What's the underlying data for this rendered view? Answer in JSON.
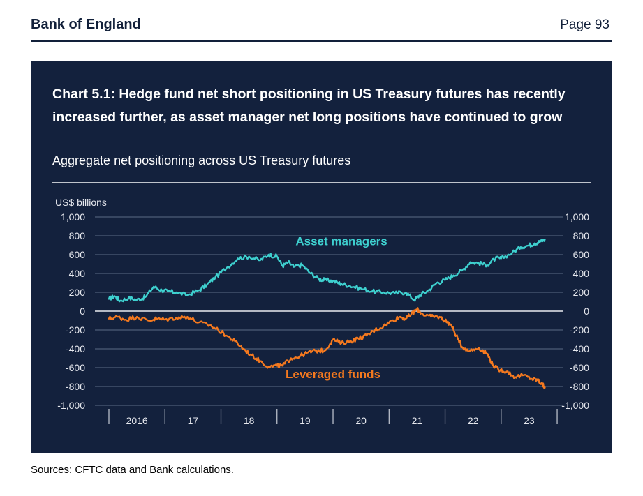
{
  "header": {
    "org": "Bank of England",
    "page": "Page 93"
  },
  "footer": {
    "sources": "Sources: CFTC data and Bank calculations."
  },
  "chart_data": {
    "type": "line",
    "title": "Chart 5.1: Hedge fund net short positioning in US Treasury futures has recently increased further, as asset manager net long positions have continued to grow",
    "subtitle": "Aggregate net positioning across US Treasury futures",
    "ylabel": "US$ billions",
    "ylim": [
      -1000,
      1000
    ],
    "yticks": [
      1000,
      800,
      600,
      400,
      200,
      0,
      -200,
      -400,
      -600,
      -800,
      -1000
    ],
    "ytick_labels": [
      "1,000",
      "800",
      "600",
      "400",
      "200",
      "0",
      "-200",
      "-400",
      "-600",
      "-800",
      "-1,000"
    ],
    "xlim": [
      2016.0,
      2023.85
    ],
    "xticks": [
      2016,
      2017,
      2018,
      2019,
      2020,
      2021,
      2022,
      2023,
      2024
    ],
    "x_labels": [
      "2016",
      "17",
      "18",
      "19",
      "20",
      "21",
      "22",
      "23"
    ],
    "x_label_positions": [
      2016.5,
      2017.5,
      2018.5,
      2019.5,
      2020.5,
      2021.5,
      2022.5,
      2023.5
    ],
    "grid": true,
    "series": [
      {
        "name": "Asset managers",
        "color": "#3ed0cf",
        "x": [
          2016.0,
          2016.1,
          2016.2,
          2016.35,
          2016.5,
          2016.65,
          2016.8,
          2016.95,
          2017.05,
          2017.2,
          2017.4,
          2017.6,
          2017.75,
          2017.9,
          2018.1,
          2018.3,
          2018.5,
          2018.7,
          2018.85,
          2019.0,
          2019.1,
          2019.2,
          2019.3,
          2019.45,
          2019.6,
          2019.75,
          2019.85,
          2020.0,
          2020.15,
          2020.3,
          2020.5,
          2020.7,
          2020.9,
          2021.1,
          2021.3,
          2021.45,
          2021.55,
          2021.7,
          2021.85,
          2022.0,
          2022.15,
          2022.3,
          2022.45,
          2022.6,
          2022.75,
          2022.9,
          2023.0,
          2023.2,
          2023.35,
          2023.5,
          2023.6,
          2023.7,
          2023.78
        ],
        "values": [
          130,
          160,
          110,
          140,
          120,
          150,
          260,
          220,
          210,
          200,
          170,
          220,
          280,
          360,
          460,
          560,
          580,
          540,
          600,
          580,
          480,
          520,
          470,
          490,
          400,
          340,
          330,
          320,
          290,
          270,
          240,
          210,
          200,
          190,
          200,
          120,
          170,
          220,
          300,
          330,
          380,
          430,
          520,
          510,
          490,
          560,
          560,
          620,
          680,
          700,
          720,
          740,
          760
        ]
      },
      {
        "name": "Leveraged funds",
        "color": "#f4791f",
        "x": [
          2016.0,
          2016.15,
          2016.3,
          2016.5,
          2016.7,
          2016.85,
          2017.0,
          2017.2,
          2017.4,
          2017.6,
          2017.8,
          2017.95,
          2018.1,
          2018.25,
          2018.4,
          2018.55,
          2018.7,
          2018.85,
          2019.0,
          2019.1,
          2019.25,
          2019.4,
          2019.55,
          2019.7,
          2019.85,
          2020.0,
          2020.15,
          2020.3,
          2020.45,
          2020.6,
          2020.75,
          2020.9,
          2021.05,
          2021.2,
          2021.3,
          2021.4,
          2021.5,
          2021.6,
          2021.75,
          2021.9,
          2022.0,
          2022.1,
          2022.2,
          2022.3,
          2022.45,
          2022.6,
          2022.75,
          2022.85,
          2022.95,
          2023.1,
          2023.25,
          2023.4,
          2023.55,
          2023.65,
          2023.72,
          2023.78
        ],
        "values": [
          -80,
          -60,
          -90,
          -60,
          -100,
          -80,
          -90,
          -70,
          -60,
          -120,
          -150,
          -200,
          -260,
          -320,
          -400,
          -470,
          -530,
          -590,
          -580,
          -580,
          -500,
          -480,
          -440,
          -420,
          -420,
          -300,
          -340,
          -320,
          -290,
          -260,
          -200,
          -160,
          -100,
          -60,
          -80,
          -30,
          20,
          -30,
          -60,
          -60,
          -100,
          -140,
          -260,
          -380,
          -420,
          -390,
          -450,
          -570,
          -620,
          -640,
          -700,
          -680,
          -720,
          -730,
          -770,
          -810
        ]
      }
    ],
    "annotations": [
      {
        "text": "Asset managers",
        "series": "Asset managers"
      },
      {
        "text": "Leveraged funds",
        "series": "Leveraged funds"
      }
    ]
  }
}
